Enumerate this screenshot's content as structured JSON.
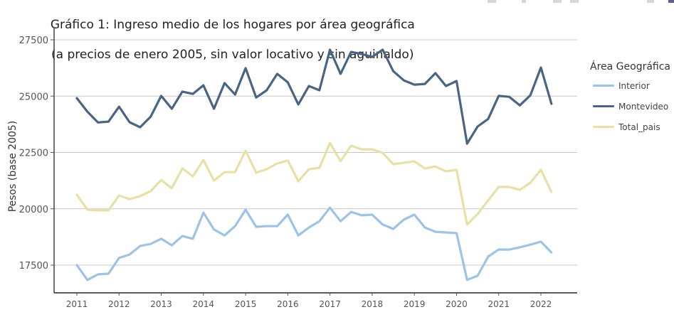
{
  "chart_data": {
    "type": "line",
    "title": "Gráfico 1: Ingreso medio de los hogares por área geográfica",
    "subtitle": "(a precios de enero 2005, sin valor locativo y sin aguinaldo)",
    "xlabel": "",
    "ylabel": "Pesos (base 2005)",
    "ylim": [
      16250,
      27500
    ],
    "xlim": [
      2010.7,
      2023.0
    ],
    "grid": true,
    "yticks": [
      17500,
      20000,
      22500,
      25000,
      27500
    ],
    "yticks_labels": [
      "17500",
      "20000",
      "22500",
      "25000",
      "27500"
    ],
    "xticks": [
      2011,
      2012,
      2013,
      2014,
      2015,
      2016,
      2017,
      2018,
      2019,
      2020,
      2021,
      2022
    ],
    "xticks_labels": [
      "2011",
      "2012",
      "2013",
      "2014",
      "2015",
      "2016",
      "2017",
      "2018",
      "2019",
      "2020",
      "2021",
      "2022"
    ],
    "legend_title": "Área Geográfica",
    "legend_position": "right",
    "x": [
      2011.0,
      2011.25,
      2011.5,
      2011.75,
      2012.0,
      2012.25,
      2012.5,
      2012.75,
      2013.0,
      2013.25,
      2013.5,
      2013.75,
      2014.0,
      2014.25,
      2014.5,
      2014.75,
      2015.0,
      2015.25,
      2015.5,
      2015.75,
      2016.0,
      2016.25,
      2016.5,
      2016.75,
      2017.0,
      2017.25,
      2017.5,
      2017.75,
      2018.0,
      2018.25,
      2018.5,
      2018.75,
      2019.0,
      2019.25,
      2019.5,
      2019.75,
      2020.0,
      2020.25,
      2020.5,
      2020.75,
      2021.0,
      2021.25,
      2021.5,
      2021.75,
      2022.0,
      2022.25
    ],
    "series": [
      {
        "name": "Interior",
        "color": "#9dc3e6",
        "values": [
          17500,
          16840,
          17090,
          17120,
          17820,
          17970,
          18350,
          18440,
          18670,
          18380,
          18790,
          18670,
          19830,
          19080,
          18820,
          19230,
          19960,
          19200,
          19230,
          19230,
          19740,
          18820,
          19170,
          19450,
          20050,
          19450,
          19860,
          19710,
          19740,
          19300,
          19110,
          19520,
          19740,
          19170,
          18980,
          18950,
          18920,
          16840,
          17030,
          17880,
          18190,
          18190,
          18290,
          18410,
          18540,
          18060
        ]
      },
      {
        "name": "Montevideo",
        "color": "#4a6582",
        "values": [
          24910,
          24310,
          23830,
          23870,
          24530,
          23840,
          23620,
          24090,
          25010,
          24440,
          25200,
          25100,
          25480,
          24440,
          25580,
          25070,
          26240,
          24940,
          25260,
          25990,
          25610,
          24630,
          25450,
          25260,
          27060,
          25990,
          26960,
          26870,
          26740,
          27060,
          26110,
          25700,
          25510,
          25540,
          26020,
          25450,
          25670,
          22890,
          23650,
          23990,
          25010,
          24970,
          24590,
          25040,
          26270,
          24660
        ]
      },
      {
        "name": "Total_pais",
        "color": "#e8e0a4",
        "values": [
          20620,
          19960,
          19930,
          19930,
          20590,
          20430,
          20560,
          20780,
          21280,
          20910,
          21790,
          21440,
          22170,
          21250,
          21630,
          21630,
          22580,
          21600,
          21760,
          22010,
          22140,
          21220,
          21760,
          21820,
          22920,
          22110,
          22800,
          22640,
          22640,
          22480,
          21980,
          22040,
          22110,
          21790,
          21880,
          21660,
          21730,
          19300,
          19770,
          20370,
          20970,
          20970,
          20840,
          21160,
          21730,
          20750
        ]
      }
    ]
  }
}
